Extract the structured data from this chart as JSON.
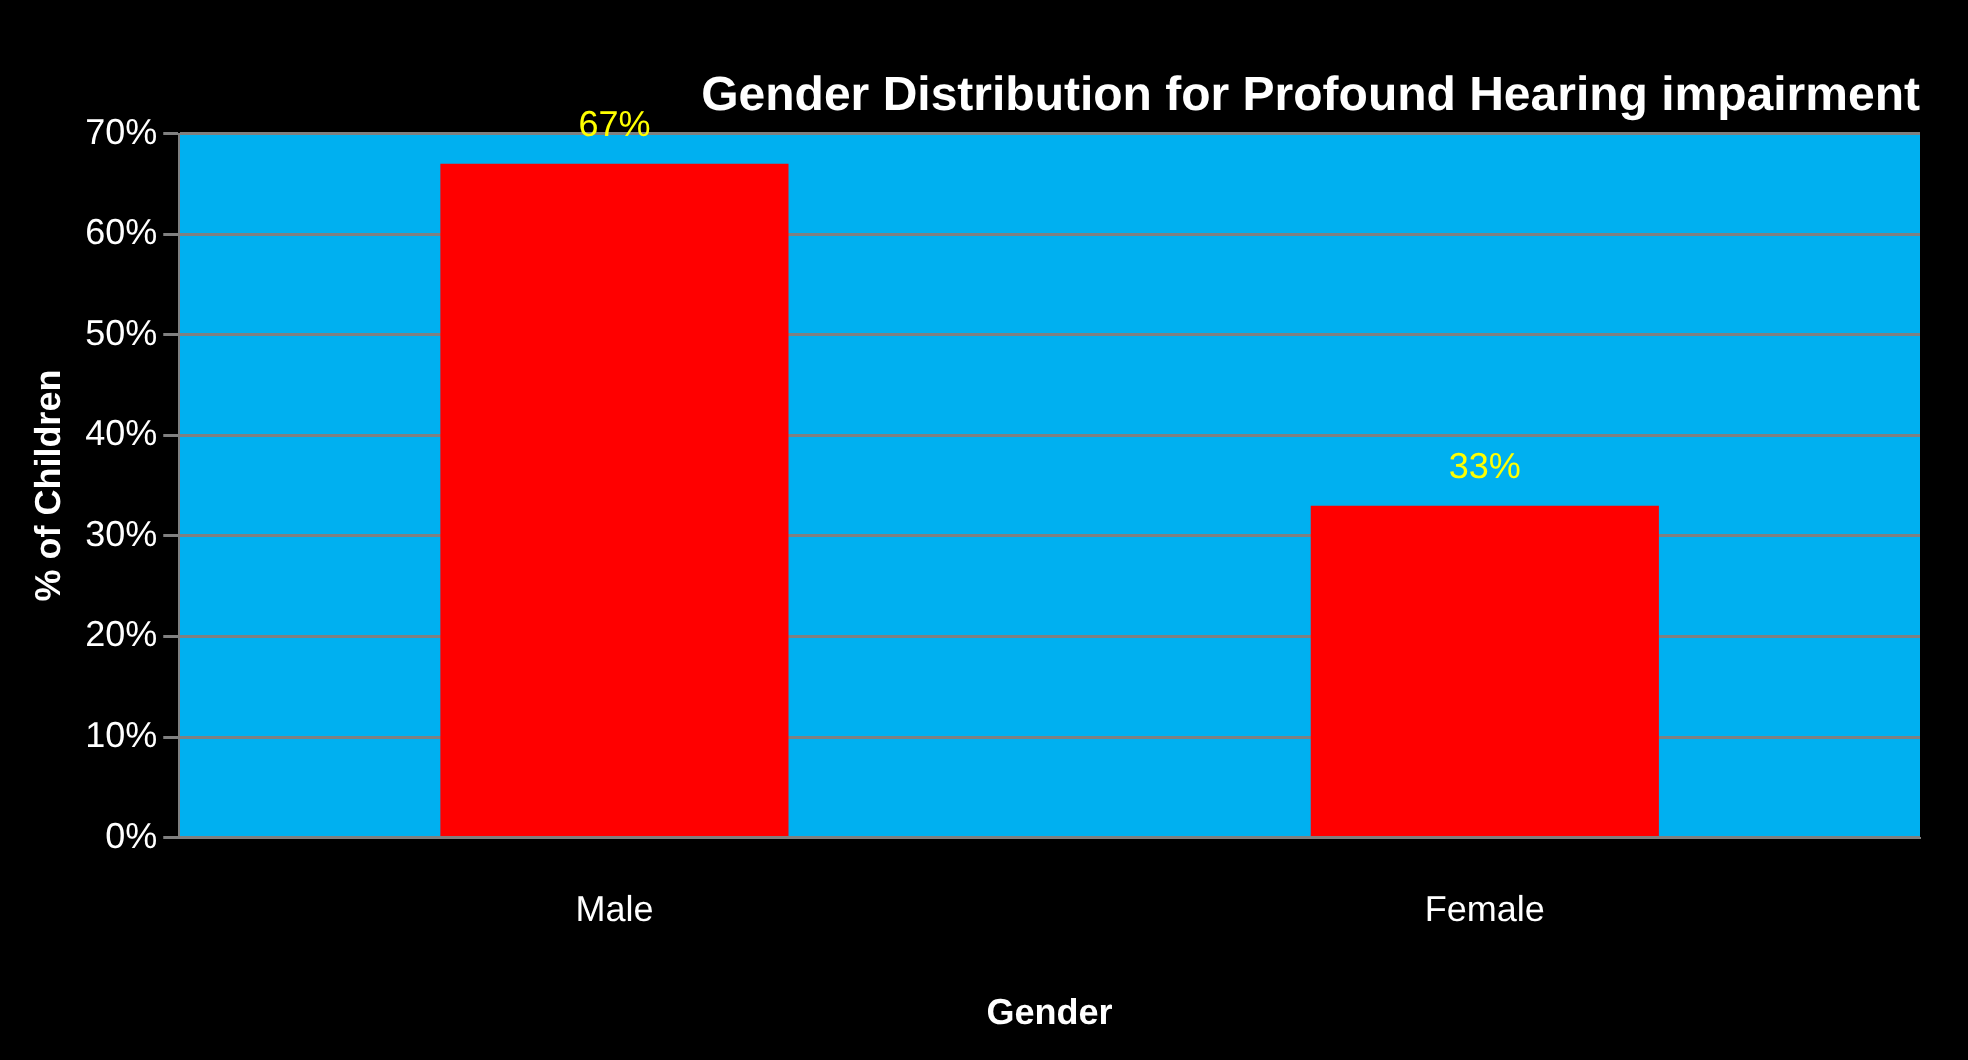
{
  "chart_data": {
    "type": "bar",
    "title": "Gender Distribution for Profound Hearing impairment",
    "xlabel": "Gender",
    "ylabel": "% of Children",
    "categories": [
      "Male",
      "Female"
    ],
    "values": [
      67,
      33
    ],
    "color": "#ff0000",
    "value_labels": [
      "67%",
      "33%"
    ],
    "ylim": [
      0,
      70
    ],
    "yticks": [
      {
        "value": 0,
        "label": "0%"
      },
      {
        "value": 10,
        "label": "10%"
      },
      {
        "value": 20,
        "label": "20%"
      },
      {
        "value": 30,
        "label": "30%"
      },
      {
        "value": 40,
        "label": "40%"
      },
      {
        "value": 50,
        "label": "50%"
      },
      {
        "value": 60,
        "label": "60%"
      },
      {
        "value": 70,
        "label": "70%"
      }
    ],
    "grid": "y",
    "legend": false
  }
}
